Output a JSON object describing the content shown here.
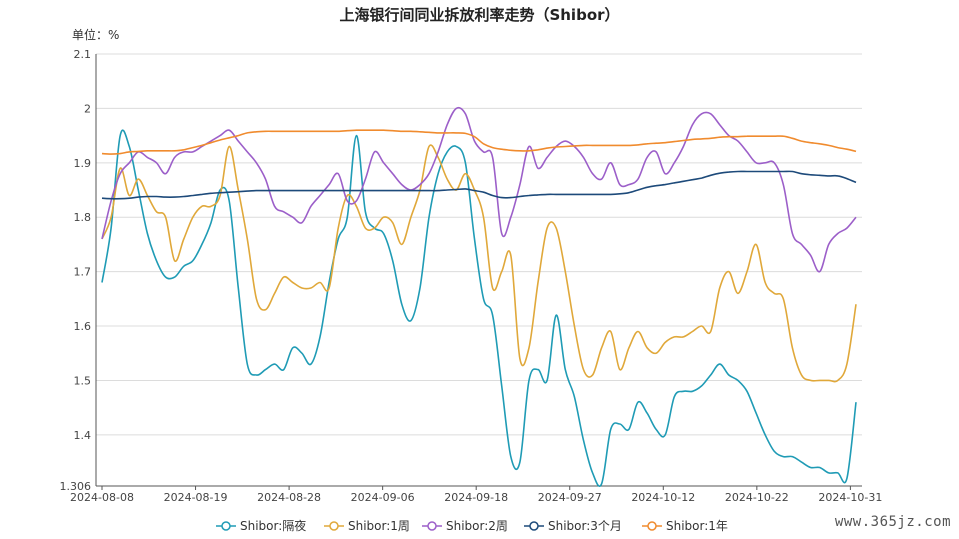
{
  "chart_data": {
    "type": "line",
    "title": "上海银行间同业拆放利率走势（Shibor）",
    "unit_label": "单位：%",
    "ylim": [
      1.306,
      2.1
    ],
    "y_ticks": [
      "1.306",
      "1.4",
      "1.5",
      "1.6",
      "1.7",
      "1.8",
      "1.9",
      "2",
      "2.1"
    ],
    "x_ticks": [
      "2024-08-08",
      "2024-08-19",
      "2024-08-28",
      "2024-09-06",
      "2024-09-18",
      "2024-09-27",
      "2024-10-12",
      "2024-10-22",
      "2024-10-31"
    ],
    "grid": true,
    "legend_position": "bottom",
    "series": [
      {
        "name": "Shibor:隔夜",
        "color": "#1f9bb5",
        "values": [
          1.68,
          1.78,
          1.95,
          1.93,
          1.85,
          1.77,
          1.72,
          1.69,
          1.69,
          1.71,
          1.72,
          1.75,
          1.79,
          1.85,
          1.83,
          1.67,
          1.53,
          1.51,
          1.52,
          1.53,
          1.52,
          1.56,
          1.55,
          1.53,
          1.58,
          1.68,
          1.76,
          1.8,
          1.95,
          1.81,
          1.78,
          1.77,
          1.72,
          1.64,
          1.61,
          1.67,
          1.8,
          1.88,
          1.92,
          1.93,
          1.9,
          1.76,
          1.65,
          1.62,
          1.49,
          1.36,
          1.35,
          1.5,
          1.52,
          1.5,
          1.62,
          1.52,
          1.47,
          1.39,
          1.33,
          1.31,
          1.41,
          1.42,
          1.41,
          1.46,
          1.44,
          1.41,
          1.4,
          1.47,
          1.48,
          1.48,
          1.49,
          1.51,
          1.53,
          1.51,
          1.5,
          1.48,
          1.44,
          1.4,
          1.37,
          1.36,
          1.36,
          1.35,
          1.34,
          1.34,
          1.33,
          1.33,
          1.32,
          1.46
        ]
      },
      {
        "name": "Shibor:1周",
        "color": "#e0a83a",
        "values": [
          1.76,
          1.8,
          1.89,
          1.84,
          1.87,
          1.84,
          1.81,
          1.8,
          1.72,
          1.76,
          1.8,
          1.82,
          1.82,
          1.84,
          1.93,
          1.85,
          1.76,
          1.65,
          1.63,
          1.66,
          1.69,
          1.68,
          1.67,
          1.67,
          1.68,
          1.67,
          1.78,
          1.84,
          1.82,
          1.78,
          1.78,
          1.8,
          1.79,
          1.75,
          1.8,
          1.85,
          1.93,
          1.91,
          1.87,
          1.85,
          1.88,
          1.85,
          1.8,
          1.67,
          1.7,
          1.73,
          1.54,
          1.56,
          1.68,
          1.78,
          1.78,
          1.7,
          1.6,
          1.52,
          1.51,
          1.56,
          1.59,
          1.52,
          1.56,
          1.59,
          1.56,
          1.55,
          1.57,
          1.58,
          1.58,
          1.59,
          1.6,
          1.59,
          1.67,
          1.7,
          1.66,
          1.7,
          1.75,
          1.68,
          1.66,
          1.65,
          1.56,
          1.51,
          1.5,
          1.5,
          1.5,
          1.5,
          1.53,
          1.64
        ]
      },
      {
        "name": "Shibor:2周",
        "color": "#9c5fc9",
        "values": [
          1.76,
          1.83,
          1.88,
          1.9,
          1.92,
          1.91,
          1.9,
          1.88,
          1.91,
          1.92,
          1.92,
          1.93,
          1.94,
          1.95,
          1.96,
          1.94,
          1.92,
          1.9,
          1.87,
          1.82,
          1.81,
          1.8,
          1.79,
          1.82,
          1.84,
          1.86,
          1.88,
          1.83,
          1.83,
          1.87,
          1.92,
          1.9,
          1.88,
          1.86,
          1.85,
          1.86,
          1.88,
          1.92,
          1.97,
          2.0,
          1.99,
          1.94,
          1.92,
          1.91,
          1.77,
          1.8,
          1.86,
          1.93,
          1.89,
          1.91,
          1.93,
          1.94,
          1.93,
          1.91,
          1.88,
          1.87,
          1.9,
          1.86,
          1.86,
          1.87,
          1.91,
          1.92,
          1.88,
          1.9,
          1.93,
          1.97,
          1.99,
          1.99,
          1.97,
          1.95,
          1.94,
          1.92,
          1.9,
          1.9,
          1.9,
          1.86,
          1.77,
          1.75,
          1.73,
          1.7,
          1.75,
          1.77,
          1.78,
          1.8
        ]
      },
      {
        "name": "Shibor:3个月",
        "color": "#1d4a7a",
        "values": [
          1.835,
          1.834,
          1.834,
          1.835,
          1.837,
          1.838,
          1.838,
          1.837,
          1.837,
          1.838,
          1.84,
          1.842,
          1.844,
          1.845,
          1.846,
          1.847,
          1.848,
          1.849,
          1.849,
          1.849,
          1.849,
          1.849,
          1.849,
          1.849,
          1.849,
          1.849,
          1.849,
          1.849,
          1.849,
          1.849,
          1.849,
          1.849,
          1.849,
          1.849,
          1.849,
          1.849,
          1.849,
          1.849,
          1.85,
          1.851,
          1.852,
          1.849,
          1.846,
          1.84,
          1.836,
          1.836,
          1.838,
          1.84,
          1.841,
          1.842,
          1.842,
          1.842,
          1.842,
          1.842,
          1.842,
          1.842,
          1.842,
          1.843,
          1.845,
          1.85,
          1.855,
          1.858,
          1.86,
          1.863,
          1.866,
          1.869,
          1.872,
          1.877,
          1.881,
          1.883,
          1.884,
          1.884,
          1.884,
          1.884,
          1.884,
          1.884,
          1.884,
          1.88,
          1.878,
          1.877,
          1.876,
          1.876,
          1.871,
          1.864
        ]
      },
      {
        "name": "Shibor:1年",
        "color": "#f08b2e",
        "values": [
          1.917,
          1.916,
          1.917,
          1.92,
          1.921,
          1.922,
          1.922,
          1.922,
          1.922,
          1.924,
          1.928,
          1.932,
          1.937,
          1.942,
          1.946,
          1.95,
          1.955,
          1.957,
          1.958,
          1.958,
          1.958,
          1.958,
          1.958,
          1.958,
          1.958,
          1.958,
          1.958,
          1.959,
          1.96,
          1.96,
          1.96,
          1.96,
          1.959,
          1.958,
          1.958,
          1.957,
          1.956,
          1.955,
          1.955,
          1.955,
          1.954,
          1.948,
          1.935,
          1.928,
          1.925,
          1.923,
          1.922,
          1.922,
          1.924,
          1.927,
          1.929,
          1.93,
          1.931,
          1.932,
          1.932,
          1.932,
          1.932,
          1.932,
          1.932,
          1.933,
          1.935,
          1.936,
          1.937,
          1.939,
          1.941,
          1.943,
          1.944,
          1.945,
          1.947,
          1.948,
          1.948,
          1.949,
          1.949,
          1.949,
          1.949,
          1.949,
          1.945,
          1.94,
          1.937,
          1.935,
          1.932,
          1.928,
          1.925,
          1.921
        ]
      }
    ]
  },
  "watermark": "www.365jz.com"
}
